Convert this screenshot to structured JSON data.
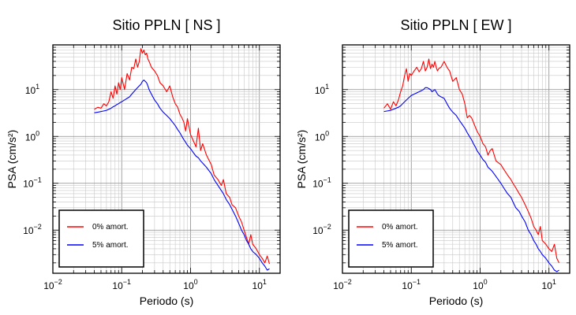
{
  "chart_data": [
    {
      "type": "line",
      "title": "Sitio PPLN [ NS ]",
      "xlabel": "Periodo (s)",
      "ylabel": "PSA (cm/s²)",
      "xscale": "log",
      "yscale": "log",
      "xlim": [
        0.01,
        20
      ],
      "ylim": [
        0.0012,
        90
      ],
      "grid": true,
      "legend_position": "bottom-left",
      "xticks": [
        {
          "base": "10",
          "exp": "−2"
        },
        {
          "base": "10",
          "exp": "−1"
        },
        {
          "base": "10",
          "exp": "0"
        },
        {
          "base": "10",
          "exp": "1"
        }
      ],
      "yticks": [
        {
          "base": "10",
          "exp": "−2"
        },
        {
          "base": "10",
          "exp": "−1"
        },
        {
          "base": "10",
          "exp": "0"
        },
        {
          "base": "10",
          "exp": "1"
        }
      ],
      "series": [
        {
          "name": "0% amort.",
          "color": "#ff0000",
          "x": [
            0.04,
            0.045,
            0.05,
            0.055,
            0.06,
            0.065,
            0.07,
            0.075,
            0.08,
            0.085,
            0.09,
            0.095,
            0.1,
            0.11,
            0.12,
            0.13,
            0.14,
            0.15,
            0.16,
            0.17,
            0.18,
            0.19,
            0.2,
            0.21,
            0.22,
            0.23,
            0.24,
            0.25,
            0.27,
            0.3,
            0.33,
            0.36,
            0.4,
            0.45,
            0.5,
            0.55,
            0.6,
            0.65,
            0.7,
            0.75,
            0.8,
            0.85,
            0.9,
            1.0,
            1.1,
            1.2,
            1.3,
            1.4,
            1.5,
            1.7,
            2.0,
            2.2,
            2.5,
            2.8,
            3.0,
            3.3,
            3.7,
            4.0,
            4.5,
            5.0,
            5.5,
            6.0,
            6.5,
            7.0,
            7.5,
            8.0,
            9.0,
            10.0,
            11.0,
            12.0,
            13.0,
            14.0
          ],
          "y": [
            3.8,
            4.2,
            4.0,
            5.0,
            4.5,
            5.5,
            9.0,
            6.5,
            12.0,
            8.0,
            14.0,
            10.0,
            18.0,
            10.0,
            22.0,
            16.0,
            30.0,
            28.0,
            45.0,
            30.0,
            40.0,
            75.0,
            60.0,
            70.0,
            55.0,
            60.0,
            45.0,
            40.0,
            30.0,
            25.0,
            20.0,
            14.0,
            12.0,
            9.0,
            12.0,
            7.0,
            5.0,
            4.2,
            3.0,
            2.5,
            2.0,
            1.3,
            2.4,
            1.1,
            0.8,
            0.6,
            1.5,
            0.5,
            0.7,
            0.4,
            0.25,
            0.15,
            0.12,
            0.09,
            0.12,
            0.06,
            0.05,
            0.035,
            0.03,
            0.02,
            0.015,
            0.01,
            0.007,
            0.005,
            0.008,
            0.005,
            0.004,
            0.003,
            0.0025,
            0.002,
            0.0028,
            0.0019
          ]
        },
        {
          "name": "5% amort.",
          "color": "#0000ff",
          "x": [
            0.04,
            0.045,
            0.05,
            0.055,
            0.06,
            0.065,
            0.07,
            0.075,
            0.08,
            0.085,
            0.09,
            0.095,
            0.1,
            0.11,
            0.12,
            0.13,
            0.14,
            0.15,
            0.16,
            0.17,
            0.18,
            0.19,
            0.2,
            0.21,
            0.22,
            0.23,
            0.24,
            0.25,
            0.27,
            0.3,
            0.33,
            0.36,
            0.4,
            0.45,
            0.5,
            0.55,
            0.6,
            0.65,
            0.7,
            0.75,
            0.8,
            0.85,
            0.9,
            1.0,
            1.1,
            1.2,
            1.3,
            1.4,
            1.5,
            1.7,
            2.0,
            2.2,
            2.5,
            2.8,
            3.0,
            3.3,
            3.7,
            4.0,
            4.5,
            5.0,
            5.5,
            6.0,
            6.5,
            7.0,
            7.5,
            8.0,
            9.0,
            10.0,
            11.0,
            12.0,
            13.0,
            14.0
          ],
          "y": [
            3.2,
            3.3,
            3.4,
            3.5,
            3.6,
            3.8,
            4.0,
            4.3,
            4.5,
            4.8,
            5.0,
            5.3,
            5.5,
            6.0,
            6.5,
            7.0,
            8.0,
            9.0,
            10.0,
            11.0,
            12.0,
            13.0,
            15.0,
            16.0,
            15.0,
            14.0,
            12.0,
            10.0,
            8.0,
            6.0,
            5.0,
            4.0,
            3.3,
            2.8,
            2.4,
            2.0,
            1.7,
            1.4,
            1.2,
            1.0,
            0.85,
            0.75,
            0.65,
            0.55,
            0.45,
            0.38,
            0.35,
            0.3,
            0.27,
            0.22,
            0.16,
            0.12,
            0.09,
            0.07,
            0.06,
            0.045,
            0.035,
            0.028,
            0.02,
            0.014,
            0.01,
            0.008,
            0.006,
            0.005,
            0.004,
            0.0035,
            0.003,
            0.0025,
            0.002,
            0.0017,
            0.0014,
            0.0015
          ]
        }
      ]
    },
    {
      "type": "line",
      "title": "Sitio PPLN [ EW ]",
      "xlabel": "Periodo (s)",
      "ylabel": "PSA (cm/s²)",
      "xscale": "log",
      "yscale": "log",
      "xlim": [
        0.01,
        20
      ],
      "ylim": [
        0.0012,
        90
      ],
      "grid": true,
      "legend_position": "bottom-left",
      "xticks": [
        {
          "base": "10",
          "exp": "−2"
        },
        {
          "base": "10",
          "exp": "−1"
        },
        {
          "base": "10",
          "exp": "0"
        },
        {
          "base": "10",
          "exp": "1"
        }
      ],
      "yticks": [
        {
          "base": "10",
          "exp": "−2"
        },
        {
          "base": "10",
          "exp": "−1"
        },
        {
          "base": "10",
          "exp": "0"
        },
        {
          "base": "10",
          "exp": "1"
        }
      ],
      "series": [
        {
          "name": "0% amort.",
          "color": "#ff0000",
          "x": [
            0.04,
            0.045,
            0.05,
            0.055,
            0.06,
            0.065,
            0.07,
            0.075,
            0.08,
            0.085,
            0.09,
            0.095,
            0.1,
            0.11,
            0.12,
            0.13,
            0.14,
            0.15,
            0.16,
            0.17,
            0.18,
            0.19,
            0.2,
            0.21,
            0.22,
            0.23,
            0.24,
            0.25,
            0.27,
            0.3,
            0.33,
            0.36,
            0.4,
            0.45,
            0.5,
            0.55,
            0.6,
            0.65,
            0.7,
            0.75,
            0.8,
            0.85,
            0.9,
            1.0,
            1.1,
            1.2,
            1.3,
            1.4,
            1.5,
            1.7,
            2.0,
            2.2,
            2.5,
            2.8,
            3.0,
            3.3,
            3.7,
            4.0,
            4.5,
            5.0,
            5.5,
            6.0,
            6.5,
            7.0,
            7.5,
            8.0,
            9.0,
            10.0,
            11.0,
            12.0,
            13.0,
            14.0
          ],
          "y": [
            4.0,
            5.0,
            3.8,
            5.5,
            4.5,
            6.0,
            9.0,
            12.0,
            20.0,
            28.0,
            15.0,
            22.0,
            20.0,
            25.0,
            30.0,
            24.0,
            28.0,
            40.0,
            25.0,
            30.0,
            45.0,
            28.0,
            35.0,
            30.0,
            40.0,
            30.0,
            25.0,
            28.0,
            30.0,
            40.0,
            30.0,
            25.0,
            15.0,
            18.0,
            10.0,
            8.0,
            5.0,
            2.5,
            2.8,
            2.5,
            2.0,
            1.6,
            1.3,
            1.0,
            0.7,
            0.6,
            0.4,
            0.5,
            0.55,
            0.3,
            0.25,
            0.2,
            0.15,
            0.12,
            0.1,
            0.08,
            0.06,
            0.05,
            0.035,
            0.025,
            0.018,
            0.012,
            0.01,
            0.008,
            0.012,
            0.006,
            0.005,
            0.004,
            0.0035,
            0.005,
            0.0025,
            0.002
          ]
        },
        {
          "name": "5% amort.",
          "color": "#0000ff",
          "x": [
            0.04,
            0.045,
            0.05,
            0.055,
            0.06,
            0.065,
            0.07,
            0.075,
            0.08,
            0.085,
            0.09,
            0.095,
            0.1,
            0.11,
            0.12,
            0.13,
            0.14,
            0.15,
            0.16,
            0.17,
            0.18,
            0.19,
            0.2,
            0.21,
            0.22,
            0.23,
            0.24,
            0.25,
            0.27,
            0.3,
            0.33,
            0.36,
            0.4,
            0.45,
            0.5,
            0.55,
            0.6,
            0.65,
            0.7,
            0.75,
            0.8,
            0.85,
            0.9,
            1.0,
            1.1,
            1.2,
            1.3,
            1.4,
            1.5,
            1.7,
            2.0,
            2.2,
            2.5,
            2.8,
            3.0,
            3.3,
            3.7,
            4.0,
            4.5,
            5.0,
            5.5,
            6.0,
            6.5,
            7.0,
            7.5,
            8.0,
            9.0,
            10.0,
            11.0,
            12.0,
            13.0,
            14.0
          ],
          "y": [
            3.4,
            3.5,
            3.6,
            3.8,
            4.0,
            4.2,
            4.5,
            5.0,
            5.5,
            6.0,
            6.5,
            7.0,
            7.5,
            8.0,
            8.5,
            9.0,
            9.5,
            10.0,
            11.0,
            11.0,
            10.5,
            10.0,
            9.0,
            9.5,
            10.0,
            9.0,
            8.0,
            7.5,
            7.0,
            6.5,
            5.0,
            4.0,
            3.3,
            2.8,
            2.2,
            1.8,
            1.5,
            1.2,
            1.0,
            0.85,
            0.7,
            0.6,
            0.5,
            0.4,
            0.32,
            0.28,
            0.22,
            0.2,
            0.18,
            0.14,
            0.1,
            0.08,
            0.06,
            0.05,
            0.04,
            0.03,
            0.025,
            0.02,
            0.015,
            0.01,
            0.008,
            0.006,
            0.005,
            0.004,
            0.0035,
            0.003,
            0.0025,
            0.002,
            0.0017,
            0.0014,
            0.0013,
            0.0014
          ]
        }
      ]
    }
  ]
}
